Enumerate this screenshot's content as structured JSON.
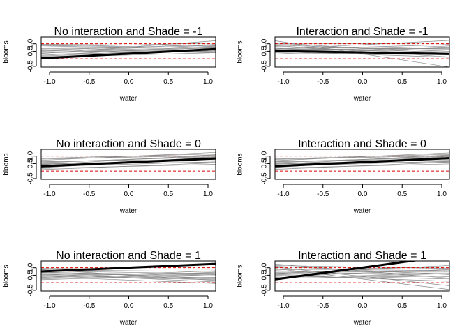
{
  "chart_data": [
    {
      "type": "line",
      "title": "No interaction and Shade = -1",
      "xlabel": "water",
      "ylabel": "blooms",
      "xlim": [
        -1.0,
        1.0
      ],
      "ylim": [
        -0.55,
        1.45
      ],
      "x_ticks": [
        "-1.0",
        "-0.5",
        "0.0",
        "0.5",
        "1.0"
      ],
      "y_ticks": [
        "-0.5",
        "0.5",
        "1.0"
      ],
      "reference_lines": [
        0.0,
        1.0
      ],
      "mean_line": {
        "x": [
          -1.0,
          1.0
        ],
        "y": [
          0.03,
          0.65
        ]
      },
      "sample_lines": [
        [
          0.13,
          0.55
        ],
        [
          0.23,
          0.85
        ],
        [
          0.38,
          0.72
        ],
        [
          0.58,
          0.95
        ],
        [
          0.45,
          0.62
        ],
        [
          0.18,
          0.68
        ],
        [
          0.68,
          0.8
        ],
        [
          0.3,
          0.5
        ],
        [
          0.78,
          1.05
        ],
        [
          0.5,
          0.9
        ],
        [
          0.88,
          0.75
        ],
        [
          0.35,
          1.2
        ],
        [
          0.62,
          0.4
        ],
        [
          0.96,
          0.88
        ],
        [
          0.1,
          0.4
        ],
        [
          0.55,
          0.73
        ]
      ]
    },
    {
      "type": "line",
      "title": "Interaction and Shade = -1",
      "xlabel": "water",
      "ylabel": "blooms",
      "xlim": [
        -1.0,
        1.0
      ],
      "ylim": [
        -0.55,
        1.45
      ],
      "x_ticks": [
        "-1.0",
        "-0.5",
        "0.0",
        "0.5",
        "1.0"
      ],
      "y_ticks": [
        "-0.5",
        "0.5",
        "1.0"
      ],
      "reference_lines": [
        0.0,
        1.0
      ],
      "mean_line": {
        "x": [
          -1.0,
          1.0
        ],
        "y": [
          0.52,
          0.32
        ]
      },
      "sample_lines": [
        [
          0.65,
          1.22
        ],
        [
          0.92,
          0.5
        ],
        [
          0.6,
          0.95
        ],
        [
          1.05,
          0.35
        ],
        [
          0.45,
          0.85
        ],
        [
          0.78,
          0.65
        ],
        [
          0.32,
          0.75
        ],
        [
          0.88,
          0.12
        ],
        [
          0.7,
          0.45
        ],
        [
          1.2,
          -0.55
        ],
        [
          0.55,
          0.6
        ],
        [
          0.98,
          1.05
        ],
        [
          0.4,
          0.25
        ],
        [
          0.82,
          0.3
        ],
        [
          0.62,
          0.7
        ],
        [
          0.5,
          0.1
        ]
      ]
    },
    {
      "type": "line",
      "title": "No interaction and Shade = 0",
      "xlabel": "water",
      "ylabel": "blooms",
      "xlim": [
        -1.0,
        1.0
      ],
      "ylim": [
        -0.55,
        1.45
      ],
      "x_ticks": [
        "-1.0",
        "-0.5",
        "0.0",
        "0.5",
        "1.0"
      ],
      "y_ticks": [
        "-0.5",
        "0.5",
        "1.0"
      ],
      "reference_lines": [
        0.0,
        1.0
      ],
      "mean_line": {
        "x": [
          -1.0,
          1.0
        ],
        "y": [
          0.32,
          0.84
        ]
      },
      "sample_lines": [
        [
          0.1,
          0.55
        ],
        [
          0.25,
          0.8
        ],
        [
          0.42,
          1.1
        ],
        [
          0.6,
          0.95
        ],
        [
          0.3,
          0.62
        ],
        [
          0.72,
          1.25
        ],
        [
          0.5,
          0.7
        ],
        [
          0.18,
          0.45
        ],
        [
          0.85,
          1.15
        ],
        [
          0.38,
          0.88
        ],
        [
          0.55,
          1.02
        ],
        [
          0.22,
          0.95
        ],
        [
          0.65,
          0.78
        ],
        [
          0.46,
          0.6
        ],
        [
          0.8,
          1.05
        ],
        [
          0.34,
          0.92
        ]
      ]
    },
    {
      "type": "line",
      "title": "Interaction and Shade = 0",
      "xlabel": "water",
      "ylabel": "blooms",
      "xlim": [
        -1.0,
        1.0
      ],
      "ylim": [
        -0.55,
        1.45
      ],
      "x_ticks": [
        "-1.0",
        "-0.5",
        "0.0",
        "0.5",
        "1.0"
      ],
      "y_ticks": [
        "-0.5",
        "0.5",
        "1.0"
      ],
      "reference_lines": [
        0.0,
        1.0
      ],
      "mean_line": {
        "x": [
          -1.0,
          1.0
        ],
        "y": [
          0.33,
          0.86
        ]
      },
      "sample_lines": [
        [
          0.12,
          0.6
        ],
        [
          0.28,
          0.82
        ],
        [
          0.45,
          1.08
        ],
        [
          0.62,
          0.92
        ],
        [
          0.32,
          0.66
        ],
        [
          0.7,
          1.22
        ],
        [
          0.52,
          0.72
        ],
        [
          0.2,
          0.48
        ],
        [
          0.82,
          1.12
        ],
        [
          0.4,
          0.9
        ],
        [
          0.56,
          1.0
        ],
        [
          0.24,
          0.98
        ],
        [
          0.66,
          0.8
        ],
        [
          0.48,
          0.62
        ],
        [
          0.78,
          1.04
        ],
        [
          0.36,
          0.94
        ]
      ]
    },
    {
      "type": "line",
      "title": "No interaction and Shade = 1",
      "xlabel": "water",
      "ylabel": "blooms",
      "xlim": [
        -1.0,
        1.0
      ],
      "ylim": [
        -0.55,
        1.45
      ],
      "x_ticks": [
        "-1.0",
        "-0.5",
        "0.0",
        "0.5",
        "1.0"
      ],
      "y_ticks": [
        "-0.5",
        "0.5",
        "1.0"
      ],
      "reference_lines": [
        0.0,
        1.0
      ],
      "mean_line": {
        "x": [
          -1.0,
          1.0
        ],
        "y": [
          0.75,
          1.26
        ]
      },
      "sample_lines": [
        [
          0.68,
          0.52
        ],
        [
          0.45,
          0.2
        ],
        [
          0.85,
          0.75
        ],
        [
          0.3,
          0.35
        ],
        [
          0.6,
          0.05
        ],
        [
          0.95,
          0.9
        ],
        [
          0.2,
          0.55
        ],
        [
          0.72,
          0.3
        ],
        [
          0.5,
          0.65
        ],
        [
          0.88,
          0.15
        ],
        [
          0.35,
          0.8
        ],
        [
          0.62,
          0.45
        ],
        [
          0.4,
          -0.05
        ],
        [
          0.78,
          0.6
        ],
        [
          0.55,
          0.25
        ],
        [
          0.25,
          0.7
        ]
      ]
    },
    {
      "type": "line",
      "title": "Interaction and Shade = 1",
      "xlabel": "water",
      "ylabel": "blooms",
      "xlim": [
        -1.0,
        1.0
      ],
      "ylim": [
        -0.55,
        1.45
      ],
      "x_ticks": [
        "-1.0",
        "-0.5",
        "0.0",
        "0.5",
        "1.0"
      ],
      "y_ticks": [
        "-0.5",
        "0.5",
        "1.0"
      ],
      "reference_lines": [
        0.0,
        1.0
      ],
      "mean_line": {
        "x": [
          -1.0,
          1.0
        ],
        "y": [
          0.22,
          1.8
        ]
      },
      "sample_lines": [
        [
          1.25,
          0.3
        ],
        [
          0.92,
          0.8
        ],
        [
          0.6,
          1.15
        ],
        [
          1.05,
          -0.2
        ],
        [
          0.35,
          0.6
        ],
        [
          0.8,
          0.4
        ],
        [
          1.15,
          0.95
        ],
        [
          0.5,
          0.1
        ],
        [
          0.7,
          0.75
        ],
        [
          0.95,
          -0.45
        ],
        [
          0.42,
          0.88
        ],
        [
          1.1,
          0.55
        ],
        [
          0.55,
          0.25
        ],
        [
          0.85,
          1.05
        ],
        [
          0.3,
          0.45
        ],
        [
          0.65,
          0.65
        ]
      ]
    }
  ]
}
